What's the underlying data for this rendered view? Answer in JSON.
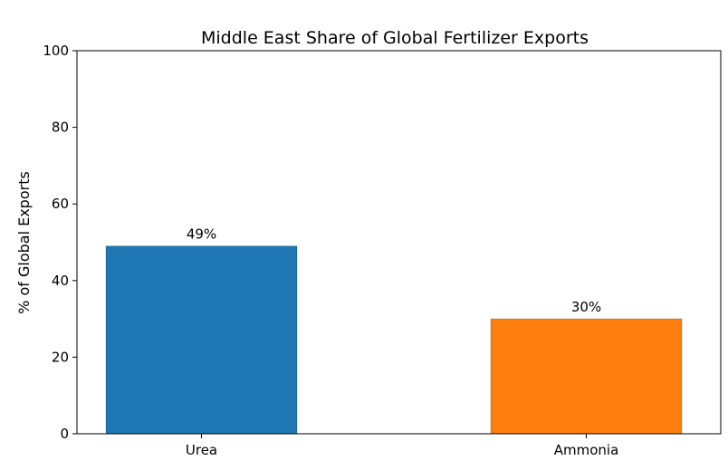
{
  "chart_data": {
    "type": "bar",
    "title": "Middle East Share of Global Fertilizer Exports",
    "xlabel": "",
    "ylabel": "% of Global Exports",
    "ylim": [
      0,
      100
    ],
    "yticks": [
      0,
      20,
      40,
      60,
      80,
      100
    ],
    "categories": [
      "Urea",
      "Ammonia"
    ],
    "values": [
      49,
      30
    ],
    "data_labels": [
      "49%",
      "30%"
    ],
    "colors": [
      "#1f77b4",
      "#ff7f0e"
    ],
    "grid": false,
    "legend": "none"
  }
}
